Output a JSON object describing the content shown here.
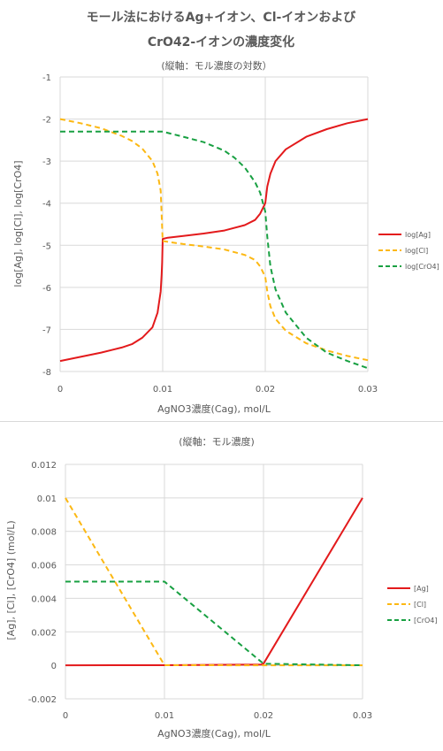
{
  "chart_data": [
    {
      "type": "line",
      "title": "モール法におけるAg+イオン、Cl-イオンおよびCrO42-イオンの濃度変化",
      "title_lines": [
        "モール法におけるAg+イオン、Cl-イオンおよび",
        "CrO42-イオンの濃度変化"
      ],
      "subtitle": "(縦軸：モル濃度の対数）",
      "xlabel": "AgNO3濃度(Cag), mol/L",
      "ylabel": "log[Ag], log[Cl], log[CrO4]",
      "xlim": [
        0,
        0.03
      ],
      "ylim": [
        -8,
        -1
      ],
      "xticks": [
        "0",
        "0.01",
        "0.02",
        "0.03"
      ],
      "yticks": [
        "-1",
        "-2",
        "-3",
        "-4",
        "-5",
        "-6",
        "-7",
        "-8"
      ],
      "grid": true,
      "legend": "right",
      "series": [
        {
          "name": "log[Ag]",
          "color": "#e31a1c",
          "dash": "",
          "points": [
            [
              0,
              -7.75
            ],
            [
              0.002,
              -7.65
            ],
            [
              0.004,
              -7.55
            ],
            [
              0.006,
              -7.43
            ],
            [
              0.007,
              -7.35
            ],
            [
              0.008,
              -7.2
            ],
            [
              0.009,
              -6.95
            ],
            [
              0.0095,
              -6.6
            ],
            [
              0.0098,
              -6.1
            ],
            [
              0.0099,
              -5.7
            ],
            [
              0.00995,
              -5.4
            ],
            [
              0.01,
              -4.85
            ],
            [
              0.0105,
              -4.82
            ],
            [
              0.012,
              -4.78
            ],
            [
              0.014,
              -4.72
            ],
            [
              0.016,
              -4.65
            ],
            [
              0.018,
              -4.52
            ],
            [
              0.019,
              -4.4
            ],
            [
              0.0195,
              -4.25
            ],
            [
              0.02,
              -4.0
            ],
            [
              0.0202,
              -3.6
            ],
            [
              0.0205,
              -3.3
            ],
            [
              0.021,
              -3.0
            ],
            [
              0.022,
              -2.72
            ],
            [
              0.024,
              -2.42
            ],
            [
              0.026,
              -2.24
            ],
            [
              0.028,
              -2.1
            ],
            [
              0.03,
              -2.0
            ]
          ]
        },
        {
          "name": "log[Cl]",
          "color": "#fcb813",
          "dash": "6,4",
          "points": [
            [
              0,
              -2.0
            ],
            [
              0.002,
              -2.1
            ],
            [
              0.004,
              -2.22
            ],
            [
              0.006,
              -2.4
            ],
            [
              0.007,
              -2.52
            ],
            [
              0.008,
              -2.7
            ],
            [
              0.009,
              -3.0
            ],
            [
              0.0095,
              -3.3
            ],
            [
              0.0098,
              -3.7
            ],
            [
              0.01,
              -4.9
            ],
            [
              0.012,
              -4.97
            ],
            [
              0.014,
              -5.03
            ],
            [
              0.016,
              -5.1
            ],
            [
              0.018,
              -5.23
            ],
            [
              0.019,
              -5.35
            ],
            [
              0.0195,
              -5.5
            ],
            [
              0.02,
              -5.75
            ],
            [
              0.0202,
              -6.1
            ],
            [
              0.0205,
              -6.45
            ],
            [
              0.021,
              -6.75
            ],
            [
              0.022,
              -7.03
            ],
            [
              0.024,
              -7.33
            ],
            [
              0.026,
              -7.5
            ],
            [
              0.028,
              -7.63
            ],
            [
              0.03,
              -7.73
            ]
          ]
        },
        {
          "name": "log[CrO4]",
          "color": "#18a042",
          "dash": "6,4",
          "points": [
            [
              0,
              -2.3
            ],
            [
              0.01,
              -2.3
            ],
            [
              0.012,
              -2.42
            ],
            [
              0.014,
              -2.55
            ],
            [
              0.016,
              -2.75
            ],
            [
              0.017,
              -2.92
            ],
            [
              0.018,
              -3.15
            ],
            [
              0.019,
              -3.5
            ],
            [
              0.0195,
              -3.75
            ],
            [
              0.02,
              -4.2
            ],
            [
              0.0202,
              -4.8
            ],
            [
              0.0205,
              -5.5
            ],
            [
              0.021,
              -6.05
            ],
            [
              0.022,
              -6.6
            ],
            [
              0.024,
              -7.2
            ],
            [
              0.026,
              -7.55
            ],
            [
              0.028,
              -7.75
            ],
            [
              0.03,
              -7.92
            ]
          ]
        }
      ]
    },
    {
      "type": "line",
      "title": "(縦軸：モル濃度)",
      "xlabel": "AgNO3濃度(Cag), mol/L",
      "ylabel": "[Ag], [Cl], [CrO4] (mol/L)",
      "xlim": [
        0,
        0.03
      ],
      "ylim": [
        -0.002,
        0.012
      ],
      "xticks": [
        "0",
        "0.01",
        "0.02",
        "0.03"
      ],
      "yticks": [
        "0.012",
        "0.01",
        "0.008",
        "0.006",
        "0.004",
        "0.002",
        "0",
        "-0.002"
      ],
      "grid": true,
      "legend": "right",
      "series": [
        {
          "name": "[Ag]",
          "color": "#e31a1c",
          "dash": "",
          "points": [
            [
              0,
              0
            ],
            [
              0.01,
              1e-05
            ],
            [
              0.0198,
              5e-05
            ],
            [
              0.02,
              0.0001
            ],
            [
              0.03,
              0.01
            ]
          ]
        },
        {
          "name": "[Cl]",
          "color": "#fcb813",
          "dash": "6,4",
          "points": [
            [
              0,
              0.01
            ],
            [
              0.01,
              1e-05
            ],
            [
              0.02,
              0
            ],
            [
              0.03,
              0
            ]
          ]
        },
        {
          "name": "[CrO4]",
          "color": "#18a042",
          "dash": "6,4",
          "points": [
            [
              0,
              0.005
            ],
            [
              0.01,
              0.005
            ],
            [
              0.02,
              0.0001
            ],
            [
              0.03,
              0
            ]
          ]
        }
      ]
    }
  ]
}
